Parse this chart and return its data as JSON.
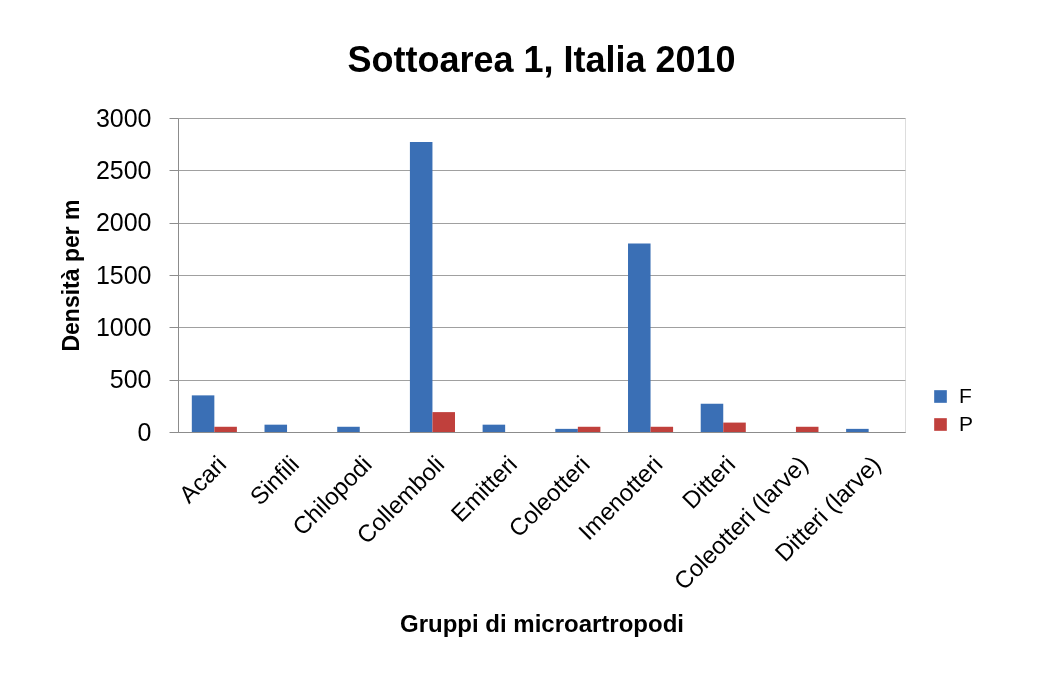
{
  "chart_data": {
    "type": "bar",
    "title": "Sottoarea 1, Italia 2010",
    "xlabel": "Gruppi di microartropodi",
    "ylabel": "Densità per m",
    "categories": [
      "Acari",
      "Sinfili",
      "Chilopodi",
      "Collemboli",
      "Emitteri",
      "Coleotteri",
      "Imenotteri",
      "Ditteri",
      "Coleotteri (larve)",
      "Ditteri (larve)"
    ],
    "series": [
      {
        "name": "F",
        "color": "#3a6fb5",
        "values": [
          350,
          70,
          50,
          2770,
          70,
          30,
          1800,
          270,
          null,
          30
        ]
      },
      {
        "name": "P",
        "color": "#c0403c",
        "values": [
          50,
          null,
          null,
          190,
          null,
          50,
          50,
          90,
          50,
          null
        ]
      }
    ],
    "ylim": [
      0,
      3000
    ],
    "yticks": [
      0,
      500,
      1000,
      1500,
      2000,
      2500,
      3000
    ],
    "grid": "y",
    "legend": "right"
  }
}
